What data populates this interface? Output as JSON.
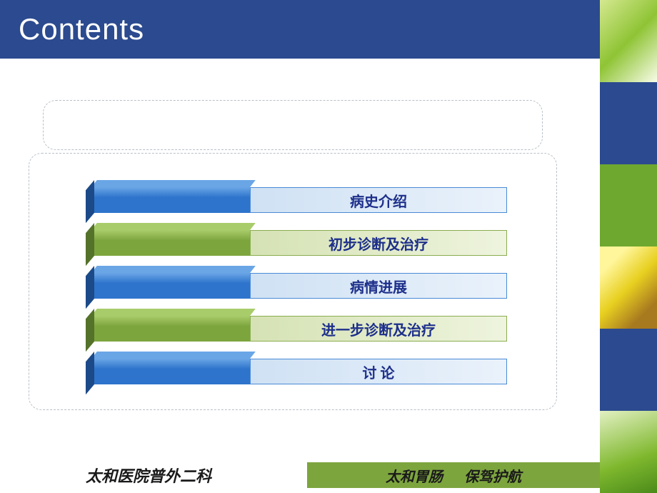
{
  "header": {
    "title": "Contents",
    "bg_color": "#2b4a8f",
    "text_color": "#ffffff"
  },
  "sidebar": {
    "blocks": [
      {
        "bg": "#8fc435"
      },
      {
        "bg": "#2b4a8f"
      },
      {
        "bg": "#6fa82f"
      },
      {
        "bg": "#e8d020"
      },
      {
        "bg": "#2b4a8f"
      },
      {
        "bg": "#7fb82e"
      }
    ]
  },
  "contents": {
    "items": [
      {
        "label": "病史介绍",
        "block_color": "#2e74cc",
        "block_dark": "#1c4a88",
        "block_top": "#6aa6e6",
        "bar_grad_from": "#cfe1f4",
        "bar_grad_to": "#eaf2fb",
        "bar_border": "#4a8ad6",
        "text_color": "#1d2f8a"
      },
      {
        "label": "初步诊断及治疗",
        "block_color": "#7da53e",
        "block_dark": "#55722a",
        "block_top": "#a8cc6a",
        "bar_grad_from": "#d5e2b4",
        "bar_grad_to": "#eef4de",
        "bar_border": "#8aad50",
        "text_color": "#1d2f8a"
      },
      {
        "label": "病情进展",
        "block_color": "#2e74cc",
        "block_dark": "#1c4a88",
        "block_top": "#6aa6e6",
        "bar_grad_from": "#cfe1f4",
        "bar_grad_to": "#eaf2fb",
        "bar_border": "#4a8ad6",
        "text_color": "#1d2f8a"
      },
      {
        "label": "进一步诊断及治疗",
        "block_color": "#7da53e",
        "block_dark": "#55722a",
        "block_top": "#a8cc6a",
        "bar_grad_from": "#d5e2b4",
        "bar_grad_to": "#eef4de",
        "bar_border": "#8aad50",
        "text_color": "#1d2f8a"
      },
      {
        "label": "讨 论",
        "block_color": "#2e74cc",
        "block_dark": "#1c4a88",
        "block_top": "#6aa6e6",
        "bar_grad_from": "#cfe1f4",
        "bar_grad_to": "#eaf2fb",
        "bar_border": "#4a8ad6",
        "text_color": "#1d2f8a"
      }
    ]
  },
  "footer": {
    "left_text": "太和医院普外二科",
    "right_text_1": "太和胃肠",
    "right_text_2": "保驾护航",
    "right_bg": "#7da53e",
    "text_color": "#1a1a1a"
  }
}
